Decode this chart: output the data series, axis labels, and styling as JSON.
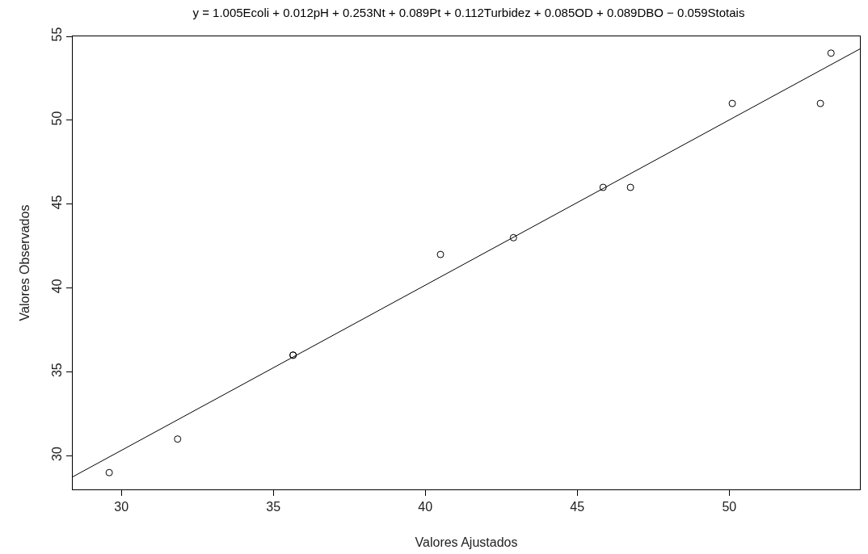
{
  "chart_data": {
    "type": "scatter",
    "title": "y = 1.005Ecoli + 0.012pH + 0.253Nt + 0.089Pt + 0.112Turbidez + 0.085OD + 0.089DBO − 0.059Stotais",
    "xlabel": "Valores Ajustados",
    "ylabel": "Valores Observados",
    "series": [
      {
        "color": "#000000",
        "marker": "circle",
        "x": [
          29.6,
          31.85,
          35.65,
          35.65,
          40.5,
          42.9,
          45.85,
          46.75,
          50.1,
          53.0,
          53.35
        ],
        "values": [
          29,
          31,
          36,
          36,
          42,
          43,
          46,
          46,
          51,
          51,
          54
        ]
      },
      {
        "type": "line",
        "color": "#000000",
        "marker": "none",
        "x": [
          28.4,
          54.3
        ],
        "values": [
          28.75,
          54.25
        ]
      }
    ],
    "xlim": [
      28.4,
      54.3
    ],
    "xticks": [
      30,
      35,
      40,
      45,
      50
    ],
    "ylim": [
      28,
      55
    ],
    "yticks": [
      30,
      35,
      40,
      45,
      50,
      55
    ]
  }
}
